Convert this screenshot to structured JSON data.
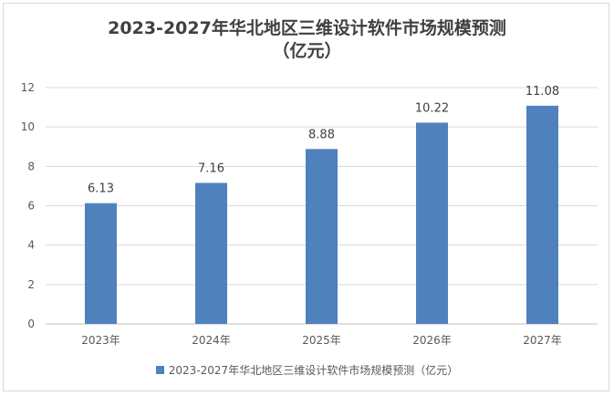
{
  "title_line1": "2023-2027年华北地区三维设计软件市场规模预测",
  "title_line2": "（亿元）",
  "legend_label": "2023-2027年华北地区三维设计软件市场规模预测（亿元）",
  "colors": {
    "bar": "#4f81bd",
    "grid": "#d9d9d9",
    "axis_text": "#595959"
  },
  "chart_data": {
    "type": "bar",
    "title": "2023-2027年华北地区三维设计软件市场规模预测（亿元）",
    "categories": [
      "2023年",
      "2024年",
      "2025年",
      "2026年",
      "2027年"
    ],
    "series": [
      {
        "name": "2023-2027年华北地区三维设计软件市场规模预测（亿元）",
        "values": [
          6.13,
          7.16,
          8.88,
          10.22,
          11.08
        ]
      }
    ],
    "value_labels": [
      "6.13",
      "7.16",
      "8.88",
      "10.22",
      "11.08"
    ],
    "y_ticks": [
      "0",
      "2",
      "4",
      "6",
      "8",
      "10",
      "12"
    ],
    "ylim": [
      0,
      12
    ],
    "grid": true,
    "legend_position": "bottom"
  }
}
